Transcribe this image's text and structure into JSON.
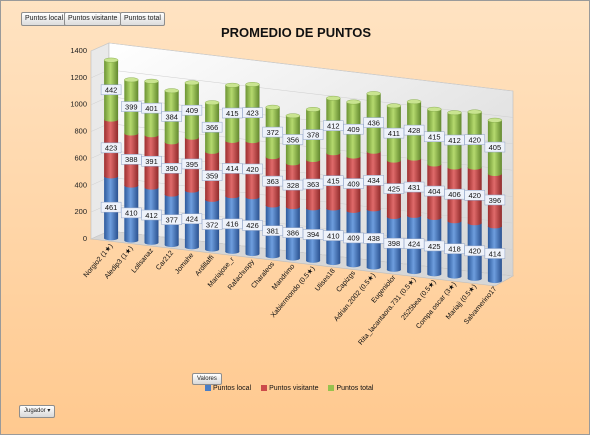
{
  "buttons": {
    "local": "Puntos local",
    "visitante": "Puntos visitante",
    "total": "Puntos total",
    "valores": "Valores",
    "jugador": "Jugador",
    "dropdown_icon": "dropdown-arrow-icon"
  },
  "chart_data": {
    "type": "bar",
    "stacked": true,
    "title": "PROMEDIO DE PUNTOS",
    "xlabel": "",
    "ylabel": "",
    "ylim": [
      0,
      1400
    ],
    "yticks": [
      "0",
      "200",
      "400",
      "600",
      "800",
      "1000",
      "1200",
      "1400"
    ],
    "legend_position": "bottom",
    "categories": [
      "Norgio2 (1★)",
      "Aledip3 (1★)",
      "Lolisanaz",
      "Car212",
      "Jomahe",
      "Ardillaffi",
      "Mariajose_r",
      "Rafachuspy",
      "Charaleos",
      "Mandrimo",
      "Xabiermondo (0.5★)",
      "Ulises18",
      "Capizgs",
      "Adrian.2002 (0.5★)",
      "Eugeniolor",
      "Rita_lacantaora.731 (0.5★)",
      "2525bea (0.5★)",
      "Compa oscar (3★)",
      "Mariajj (0.5★)",
      "Salvamerino17"
    ],
    "series": [
      {
        "name": "Puntos local",
        "color": "#4a7ec6",
        "values": [
          461,
          410,
          412,
          377,
          424,
          372,
          416,
          426,
          381,
          386,
          394,
          410,
          409,
          438,
          398,
          424,
          425,
          418,
          420,
          414
        ]
      },
      {
        "name": "Puntos visitante",
        "color": "#cc4a4a",
        "values": [
          423,
          388,
          391,
          390,
          395,
          359,
          414,
          420,
          363,
          328,
          363,
          415,
          409,
          434,
          425,
          431,
          404,
          406,
          420,
          396
        ]
      },
      {
        "name": "Puntos total",
        "color": "#97c24e",
        "values": [
          442,
          399,
          401,
          384,
          409,
          366,
          415,
          423,
          372,
          356,
          378,
          412,
          409,
          436,
          411,
          428,
          415,
          412,
          420,
          405
        ]
      }
    ]
  }
}
